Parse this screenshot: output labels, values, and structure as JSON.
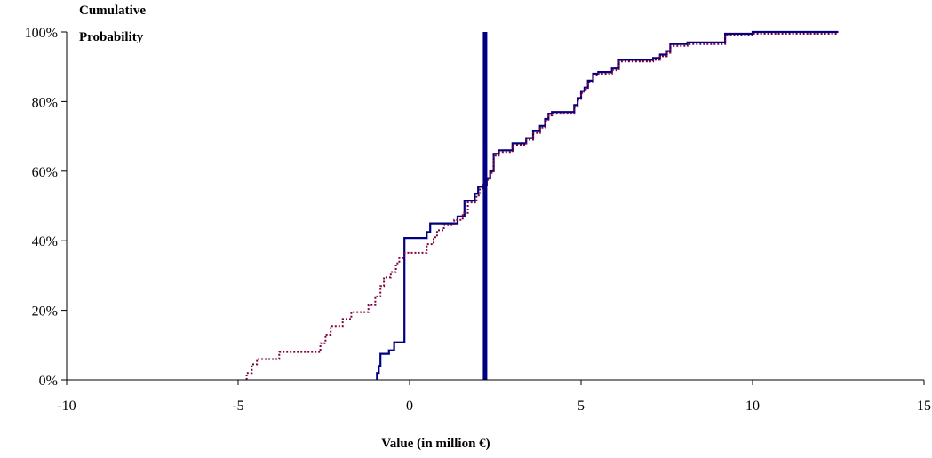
{
  "chart_data": {
    "type": "line",
    "title": "",
    "xlabel": "Value (in million €)",
    "ylabel_lines": [
      "Cumulative",
      "Probability"
    ],
    "xlim": [
      -10,
      15
    ],
    "ylim": [
      0,
      100
    ],
    "x_ticks": [
      "-10",
      "-5",
      "0",
      "5",
      "10",
      "15"
    ],
    "x_tick_values": [
      -10,
      -5,
      0,
      5,
      10,
      15
    ],
    "y_ticks": [
      "0%",
      "20%",
      "40%",
      "60%",
      "80%",
      "100%"
    ],
    "y_tick_values": [
      0,
      20,
      40,
      60,
      80,
      100
    ],
    "grid": false,
    "legend": "none",
    "vertical_marker": {
      "x": 2.2,
      "color": "#000080"
    },
    "series": [
      {
        "style": "solid",
        "color": "#000080",
        "points": [
          [
            -0.95,
            0
          ],
          [
            -0.95,
            2
          ],
          [
            -0.9,
            2
          ],
          [
            -0.9,
            4
          ],
          [
            -0.85,
            4
          ],
          [
            -0.85,
            7.5
          ],
          [
            -0.6,
            7.5
          ],
          [
            -0.6,
            8.5
          ],
          [
            -0.45,
            8.5
          ],
          [
            -0.45,
            10.8
          ],
          [
            -0.15,
            10.8
          ],
          [
            -0.15,
            40.8
          ],
          [
            0.5,
            40.8
          ],
          [
            0.5,
            42.5
          ],
          [
            0.6,
            42.5
          ],
          [
            0.6,
            45
          ],
          [
            1.4,
            45
          ],
          [
            1.4,
            47
          ],
          [
            1.6,
            47
          ],
          [
            1.6,
            51.5
          ],
          [
            1.9,
            51.5
          ],
          [
            1.9,
            53.5
          ],
          [
            2.0,
            53.5
          ],
          [
            2.0,
            55.5
          ],
          [
            2.15,
            55.5
          ],
          [
            2.15,
            56
          ],
          [
            2.25,
            56
          ],
          [
            2.25,
            58
          ],
          [
            2.35,
            58
          ],
          [
            2.35,
            60
          ],
          [
            2.45,
            60
          ],
          [
            2.45,
            65
          ],
          [
            2.6,
            65
          ],
          [
            2.6,
            66
          ],
          [
            3.0,
            66
          ],
          [
            3.0,
            68
          ],
          [
            3.4,
            68
          ],
          [
            3.4,
            69.5
          ],
          [
            3.6,
            69.5
          ],
          [
            3.6,
            71.5
          ],
          [
            3.8,
            71.5
          ],
          [
            3.8,
            73
          ],
          [
            3.95,
            73
          ],
          [
            3.95,
            75
          ],
          [
            4.05,
            75
          ],
          [
            4.05,
            76.5
          ],
          [
            4.15,
            76.5
          ],
          [
            4.15,
            77
          ],
          [
            4.8,
            77
          ],
          [
            4.8,
            79
          ],
          [
            4.9,
            79
          ],
          [
            4.9,
            81
          ],
          [
            5.0,
            81
          ],
          [
            5.0,
            83
          ],
          [
            5.1,
            83
          ],
          [
            5.1,
            84
          ],
          [
            5.2,
            84
          ],
          [
            5.2,
            86
          ],
          [
            5.35,
            86
          ],
          [
            5.35,
            88
          ],
          [
            5.5,
            88
          ],
          [
            5.5,
            88.5
          ],
          [
            5.9,
            88.5
          ],
          [
            5.9,
            89.5
          ],
          [
            6.1,
            89.5
          ],
          [
            6.1,
            92
          ],
          [
            7.1,
            92
          ],
          [
            7.1,
            92.5
          ],
          [
            7.3,
            92.5
          ],
          [
            7.3,
            93.5
          ],
          [
            7.5,
            93.5
          ],
          [
            7.5,
            94.5
          ],
          [
            7.6,
            94.5
          ],
          [
            7.6,
            96.5
          ],
          [
            8.1,
            96.5
          ],
          [
            8.1,
            97
          ],
          [
            9.2,
            97
          ],
          [
            9.2,
            99.5
          ],
          [
            10.0,
            99.5
          ],
          [
            10.0,
            100
          ],
          [
            12.5,
            100
          ]
        ]
      },
      {
        "style": "dotted",
        "color": "#800040",
        "points": [
          [
            -4.75,
            0
          ],
          [
            -4.75,
            2
          ],
          [
            -4.6,
            2
          ],
          [
            -4.6,
            4.5
          ],
          [
            -4.45,
            4.5
          ],
          [
            -4.45,
            6
          ],
          [
            -3.8,
            6
          ],
          [
            -3.8,
            8
          ],
          [
            -2.6,
            8
          ],
          [
            -2.6,
            10.5
          ],
          [
            -2.45,
            10.5
          ],
          [
            -2.45,
            13
          ],
          [
            -2.3,
            13
          ],
          [
            -2.3,
            15.5
          ],
          [
            -1.95,
            15.5
          ],
          [
            -1.95,
            17.5
          ],
          [
            -1.7,
            17.5
          ],
          [
            -1.7,
            19.5
          ],
          [
            -1.2,
            19.5
          ],
          [
            -1.2,
            21.5
          ],
          [
            -1.0,
            21.5
          ],
          [
            -1.0,
            24
          ],
          [
            -0.85,
            24
          ],
          [
            -0.85,
            27
          ],
          [
            -0.75,
            27
          ],
          [
            -0.75,
            29.5
          ],
          [
            -0.55,
            29.5
          ],
          [
            -0.55,
            31
          ],
          [
            -0.4,
            31
          ],
          [
            -0.4,
            33.5
          ],
          [
            -0.3,
            33.5
          ],
          [
            -0.3,
            35
          ],
          [
            -0.15,
            35
          ],
          [
            -0.15,
            36.5
          ],
          [
            0.5,
            36.5
          ],
          [
            0.5,
            39
          ],
          [
            0.7,
            39
          ],
          [
            0.7,
            41
          ],
          [
            0.8,
            41
          ],
          [
            0.8,
            43
          ],
          [
            1.0,
            43
          ],
          [
            1.0,
            44.5
          ],
          [
            1.3,
            44.5
          ],
          [
            1.3,
            46
          ],
          [
            1.55,
            46
          ],
          [
            1.55,
            48
          ],
          [
            1.7,
            48
          ],
          [
            1.7,
            51
          ],
          [
            1.95,
            51
          ],
          [
            1.95,
            53
          ],
          [
            2.05,
            53
          ],
          [
            2.05,
            55
          ],
          [
            2.15,
            55
          ],
          [
            2.15,
            56
          ],
          [
            2.25,
            56
          ],
          [
            2.25,
            57.5
          ],
          [
            2.35,
            57.5
          ],
          [
            2.35,
            59.5
          ],
          [
            2.45,
            59.5
          ],
          [
            2.45,
            64.5
          ],
          [
            2.6,
            64.5
          ],
          [
            2.6,
            65.5
          ],
          [
            3.0,
            65.5
          ],
          [
            3.0,
            67.5
          ],
          [
            3.4,
            67.5
          ],
          [
            3.4,
            69
          ],
          [
            3.6,
            69
          ],
          [
            3.6,
            71
          ],
          [
            3.8,
            71
          ],
          [
            3.8,
            72.5
          ],
          [
            3.95,
            72.5
          ],
          [
            3.95,
            74.5
          ],
          [
            4.05,
            74.5
          ],
          [
            4.05,
            76
          ],
          [
            4.15,
            76
          ],
          [
            4.15,
            76.5
          ],
          [
            4.8,
            76.5
          ],
          [
            4.8,
            78.5
          ],
          [
            4.9,
            78.5
          ],
          [
            4.9,
            80.5
          ],
          [
            5.0,
            80.5
          ],
          [
            5.0,
            82.5
          ],
          [
            5.1,
            82.5
          ],
          [
            5.1,
            83.5
          ],
          [
            5.2,
            83.5
          ],
          [
            5.2,
            85.5
          ],
          [
            5.35,
            85.5
          ],
          [
            5.35,
            87.5
          ],
          [
            5.5,
            87.5
          ],
          [
            5.5,
            88
          ],
          [
            5.9,
            88
          ],
          [
            5.9,
            89
          ],
          [
            6.1,
            89
          ],
          [
            6.1,
            91.5
          ],
          [
            7.1,
            91.5
          ],
          [
            7.1,
            92
          ],
          [
            7.3,
            92
          ],
          [
            7.3,
            93
          ],
          [
            7.5,
            93
          ],
          [
            7.5,
            94
          ],
          [
            7.6,
            94
          ],
          [
            7.6,
            96
          ],
          [
            8.1,
            96
          ],
          [
            8.1,
            96.5
          ],
          [
            9.2,
            96.5
          ],
          [
            9.2,
            99
          ],
          [
            10.0,
            99
          ],
          [
            10.0,
            99.5
          ],
          [
            12.5,
            99.5
          ]
        ]
      }
    ]
  }
}
